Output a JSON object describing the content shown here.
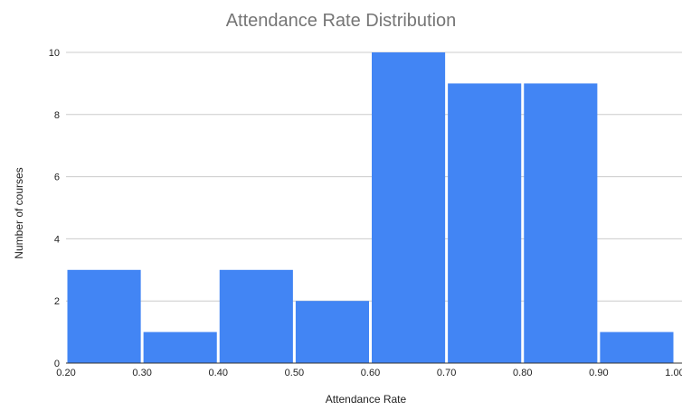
{
  "chart_data": {
    "type": "bar",
    "title": "Attendance Rate Distribution",
    "xlabel": "Attendance Rate",
    "ylabel": "Number of courses",
    "bin_edges": [
      "0.20",
      "0.30",
      "0.40",
      "0.50",
      "0.60",
      "0.70",
      "0.80",
      "0.90",
      "1.00"
    ],
    "bins": [
      {
        "from": 0.2,
        "to": 0.3,
        "count": 3
      },
      {
        "from": 0.3,
        "to": 0.4,
        "count": 1
      },
      {
        "from": 0.4,
        "to": 0.5,
        "count": 3
      },
      {
        "from": 0.5,
        "to": 0.6,
        "count": 2
      },
      {
        "from": 0.6,
        "to": 0.7,
        "count": 10
      },
      {
        "from": 0.7,
        "to": 0.8,
        "count": 9
      },
      {
        "from": 0.8,
        "to": 0.9,
        "count": 9
      },
      {
        "from": 0.9,
        "to": 1.0,
        "count": 1
      }
    ],
    "xlim": [
      0.2,
      1.0
    ],
    "ylim": [
      0,
      10
    ],
    "y_ticks": [
      "0",
      "2",
      "4",
      "6",
      "8",
      "10"
    ],
    "grid": true,
    "bar_color": "#4285f4",
    "grid_color": "#cccccc"
  }
}
